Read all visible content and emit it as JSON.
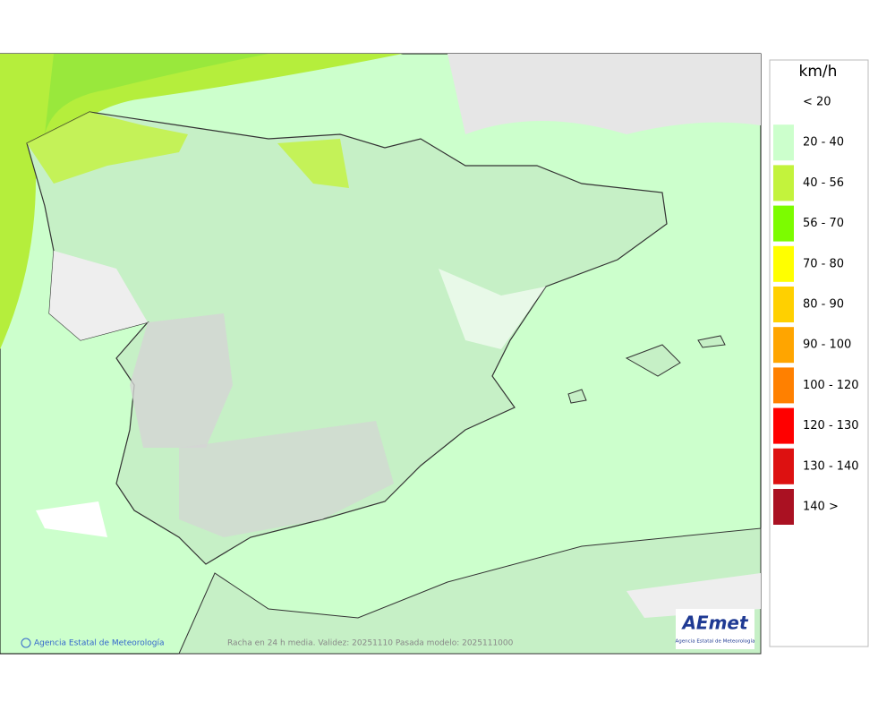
{
  "legend": {
    "title": "km/h",
    "items": [
      {
        "label": "< 20",
        "color": "#ffffff"
      },
      {
        "label": "20 - 40",
        "color": "#ccffcc"
      },
      {
        "label": "40 - 56",
        "color": "#c3f33c"
      },
      {
        "label": "56 - 70",
        "color": "#7cfc00"
      },
      {
        "label": "70 - 80",
        "color": "#ffff00"
      },
      {
        "label": "80 - 90",
        "color": "#ffd000"
      },
      {
        "label": "90 - 100",
        "color": "#ffa500"
      },
      {
        "label": "100 - 120",
        "color": "#ff8000"
      },
      {
        "label": "120 - 130",
        "color": "#ff0000"
      },
      {
        "label": "130 - 140",
        "color": "#dd1111"
      },
      {
        "label": "140 >",
        "color": "#aa1122"
      }
    ]
  },
  "footer": {
    "credit": "Agencia Estatal de Meteorología",
    "caption": "Racha en 24 h media. Validez: 20251110 Pasada modelo: 2025111000"
  },
  "logo": {
    "name": "AEmet",
    "subtitle": "Agencia Estatal de Meteorología"
  }
}
